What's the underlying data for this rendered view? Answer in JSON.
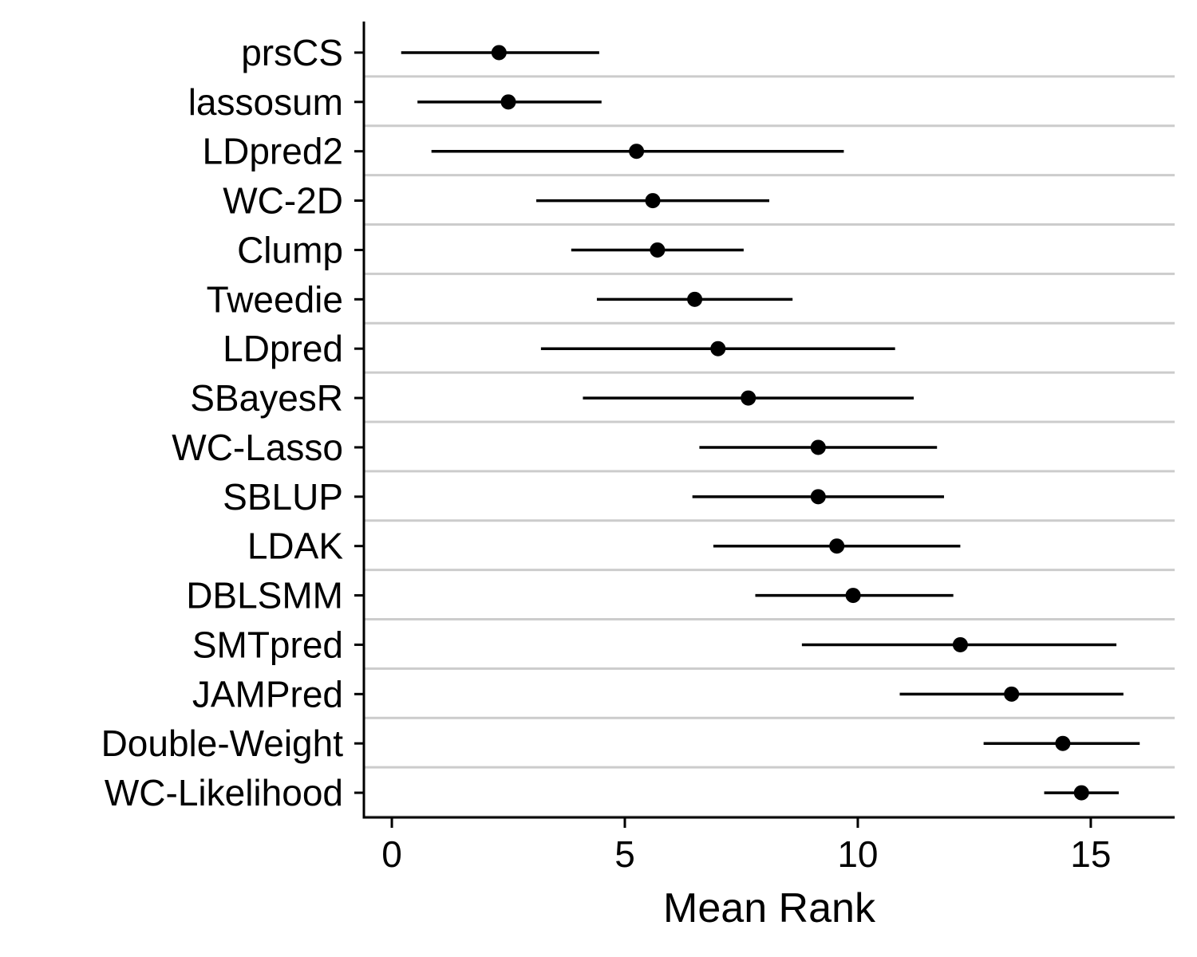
{
  "chart_data": {
    "type": "dot-interval",
    "title": "",
    "xlabel": "Mean Rank",
    "ylabel": "",
    "xlim": [
      -0.6,
      16.8
    ],
    "xticks": [
      0,
      5,
      10,
      15
    ],
    "grid": "horizontal",
    "colors": {
      "point": "#000000",
      "grid": "#cccccc",
      "axis": "#000000"
    },
    "categories": [
      "prsCS",
      "lassosum",
      "LDpred2",
      "WC-2D",
      "Clump",
      "Tweedie",
      "LDpred",
      "SBayesR",
      "WC-Lasso",
      "SBLUP",
      "LDAK",
      "DBLSMM",
      "SMTpred",
      "JAMPred",
      "Double-Weight",
      "WC-Likelihood"
    ],
    "values": [
      2.3,
      2.5,
      5.25,
      5.6,
      5.7,
      6.5,
      7.0,
      7.65,
      9.15,
      9.15,
      9.55,
      9.9,
      12.2,
      13.3,
      14.4,
      14.8
    ],
    "lower": [
      0.2,
      0.55,
      0.85,
      3.1,
      3.85,
      4.4,
      3.2,
      4.1,
      6.6,
      6.45,
      6.9,
      7.8,
      8.8,
      10.9,
      12.7,
      14.0
    ],
    "upper": [
      4.45,
      4.5,
      9.7,
      8.1,
      7.55,
      8.6,
      10.8,
      11.2,
      11.7,
      11.85,
      12.2,
      12.05,
      15.55,
      15.7,
      16.05,
      15.6
    ]
  }
}
